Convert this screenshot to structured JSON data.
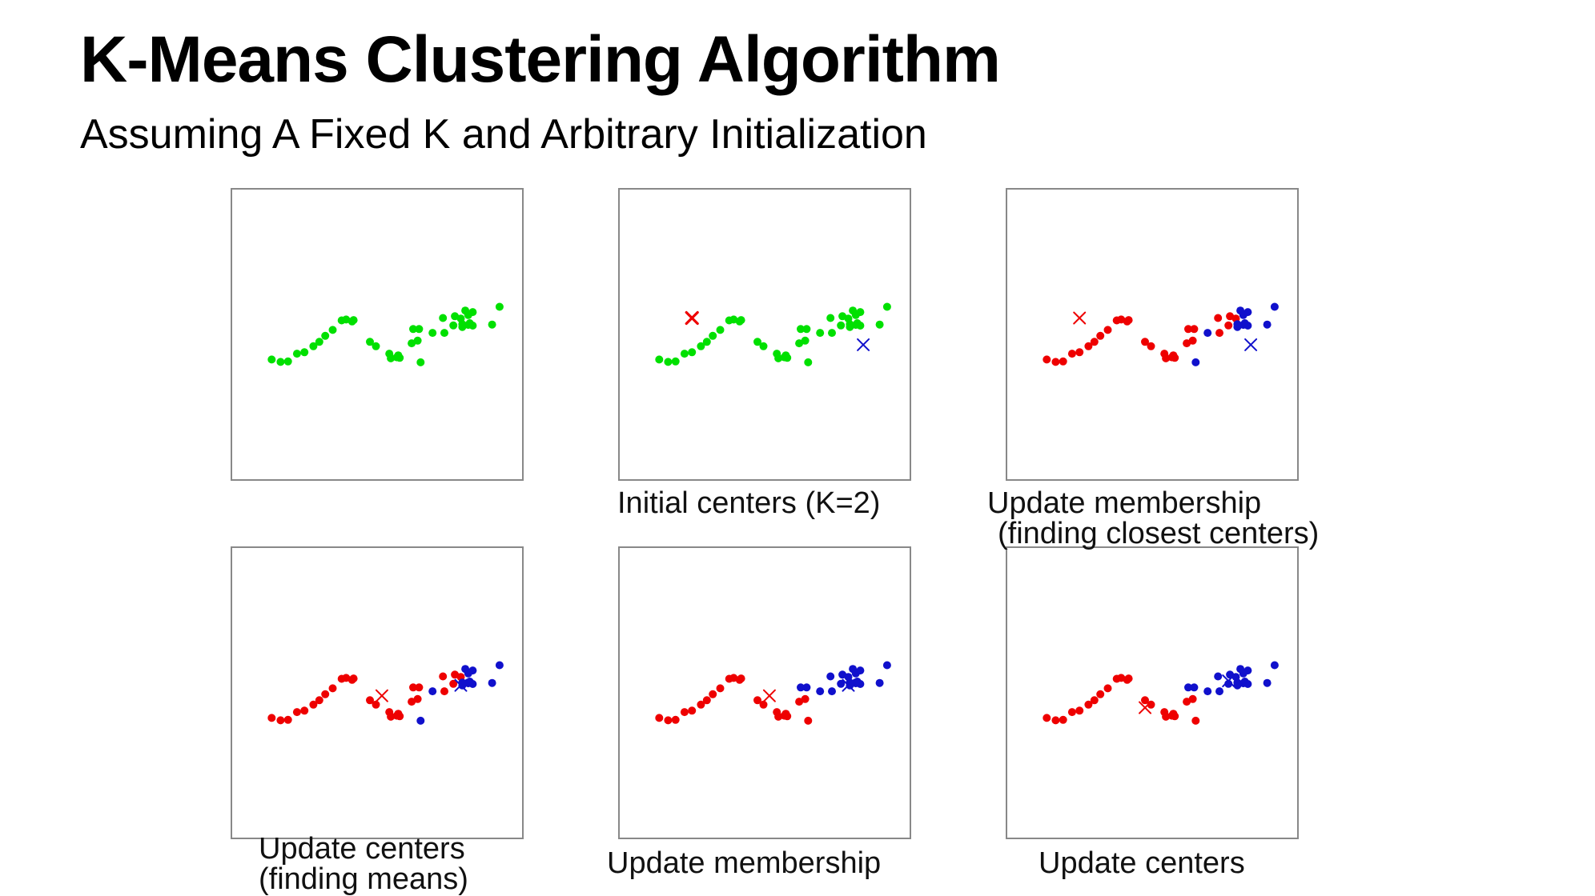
{
  "title": "K-Means Clustering Algorithm",
  "subtitle": "Assuming A Fixed K and Arbitrary Initialization",
  "colors": {
    "green": "#00e000",
    "red": "#ee0000",
    "blue": "#1010cc"
  },
  "points": [
    [
      48,
      47.1
    ],
    [
      54,
      45.5
    ],
    [
      59,
      45.8
    ],
    [
      65,
      51
    ],
    [
      70,
      52
    ],
    [
      76,
      56
    ],
    [
      80,
      59
    ],
    [
      84,
      63
    ],
    [
      89,
      67
    ],
    [
      95,
      73.4
    ],
    [
      98,
      74
    ],
    [
      102,
      72.7
    ],
    [
      103,
      73.6
    ],
    [
      114,
      59
    ],
    [
      118,
      56
    ],
    [
      127,
      51
    ],
    [
      128,
      47.9
    ],
    [
      132,
      48.6
    ],
    [
      133,
      49.9
    ],
    [
      134,
      48.2
    ],
    [
      142,
      58
    ],
    [
      146,
      59.8
    ],
    [
      148,
      45.2
    ],
    [
      143,
      67.6
    ],
    [
      147,
      67.6
    ],
    [
      156,
      65
    ],
    [
      163,
      75
    ],
    [
      164,
      65
    ],
    [
      170,
      70
    ],
    [
      171,
      76.2
    ],
    [
      175,
      74.6
    ],
    [
      176,
      69
    ],
    [
      176,
      70.8
    ],
    [
      178,
      80
    ],
    [
      180,
      77
    ],
    [
      180,
      70.4
    ],
    [
      181,
      71.5
    ],
    [
      183,
      79
    ],
    [
      183,
      69.9
    ],
    [
      196,
      70.6
    ],
    [
      201,
      82.5
    ]
  ],
  "panels": [
    {
      "caption": [
        "",
        ""
      ],
      "membership": [
        "g",
        "g",
        "g",
        "g",
        "g",
        "g",
        "g",
        "g",
        "g",
        "g",
        "g",
        "g",
        "g",
        "g",
        "g",
        "g",
        "g",
        "g",
        "g",
        "g",
        "g",
        "g",
        "g",
        "g",
        "g",
        "g",
        "g",
        "g",
        "g",
        "g",
        "g",
        "g",
        "g",
        "g",
        "g",
        "g",
        "g",
        "g",
        "g",
        "g",
        "g"
      ],
      "centers": []
    },
    {
      "caption": [
        "Initial centers (K=2)",
        ""
      ],
      "membership": [
        "g",
        "g",
        "g",
        "g",
        "g",
        "g",
        "g",
        "g",
        "g",
        "g",
        "g",
        "g",
        "g",
        "g",
        "g",
        "g",
        "g",
        "g",
        "g",
        "g",
        "g",
        "g",
        "g",
        "g",
        "g",
        "g",
        "g",
        "g",
        "g",
        "g",
        "g",
        "g",
        "g",
        "g",
        "g",
        "g",
        "g",
        "g",
        "g",
        "g",
        "g"
      ],
      "centers": [
        {
          "x": 70,
          "y": 75,
          "color": "r",
          "bold": true
        },
        {
          "x": 185,
          "y": 57,
          "color": "b",
          "bold": false
        }
      ]
    },
    {
      "caption": [
        "Update membership",
        "(finding closest centers)"
      ],
      "membership": [
        "r",
        "r",
        "r",
        "r",
        "r",
        "r",
        "r",
        "r",
        "r",
        "r",
        "r",
        "r",
        "r",
        "r",
        "r",
        "r",
        "r",
        "r",
        "r",
        "r",
        "r",
        "r",
        "b",
        "r",
        "r",
        "b",
        "r",
        "r",
        "r",
        "r",
        "r",
        "b",
        "b",
        "b",
        "b",
        "b",
        "b",
        "b",
        "b",
        "b",
        "b"
      ],
      "centers": [
        {
          "x": 70,
          "y": 75,
          "color": "r",
          "bold": false
        },
        {
          "x": 185,
          "y": 57,
          "color": "b",
          "bold": false
        }
      ]
    },
    {
      "caption": [
        "Update centers",
        "(finding means)"
      ],
      "membership": [
        "r",
        "r",
        "r",
        "r",
        "r",
        "r",
        "r",
        "r",
        "r",
        "r",
        "r",
        "r",
        "r",
        "r",
        "r",
        "r",
        "r",
        "r",
        "r",
        "r",
        "r",
        "r",
        "b",
        "r",
        "r",
        "b",
        "r",
        "r",
        "r",
        "r",
        "r",
        "b",
        "b",
        "b",
        "b",
        "b",
        "b",
        "b",
        "b",
        "b",
        "b"
      ],
      "centers": [
        {
          "x": 122,
          "y": 62,
          "color": "r",
          "bold": false
        },
        {
          "x": 175,
          "y": 69,
          "color": "b",
          "bold": false
        }
      ]
    },
    {
      "caption": [
        "Update membership",
        ""
      ],
      "membership": [
        "r",
        "r",
        "r",
        "r",
        "r",
        "r",
        "r",
        "r",
        "r",
        "r",
        "r",
        "r",
        "r",
        "r",
        "r",
        "r",
        "r",
        "r",
        "r",
        "r",
        "r",
        "r",
        "r",
        "b",
        "b",
        "b",
        "b",
        "b",
        "b",
        "b",
        "b",
        "b",
        "b",
        "b",
        "b",
        "b",
        "b",
        "b",
        "b",
        "b",
        "b"
      ],
      "centers": [
        {
          "x": 122,
          "y": 62,
          "color": "r",
          "bold": false
        },
        {
          "x": 175,
          "y": 69,
          "color": "b",
          "bold": false
        }
      ]
    },
    {
      "caption": [
        "Update centers",
        ""
      ],
      "membership": [
        "r",
        "r",
        "r",
        "r",
        "r",
        "r",
        "r",
        "r",
        "r",
        "r",
        "r",
        "r",
        "r",
        "r",
        "r",
        "r",
        "r",
        "r",
        "r",
        "r",
        "r",
        "r",
        "r",
        "b",
        "b",
        "b",
        "b",
        "b",
        "b",
        "b",
        "b",
        "b",
        "b",
        "b",
        "b",
        "b",
        "b",
        "b",
        "b",
        "b",
        "b"
      ],
      "centers": [
        {
          "x": 114,
          "y": 54,
          "color": "r",
          "bold": false
        },
        {
          "x": 170,
          "y": 72,
          "color": "b",
          "bold": false
        }
      ]
    }
  ]
}
